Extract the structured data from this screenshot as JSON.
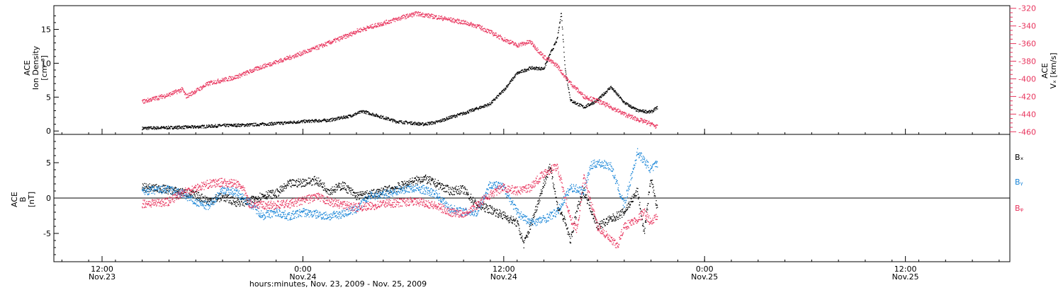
{
  "colors": {
    "axis": "#000000",
    "black_series": "#000000",
    "red_series": "#e8345d",
    "blue_series": "#1a86d8"
  },
  "chart_data": [
    {
      "type": "scatter",
      "panel": "top",
      "ylabel_lines": [
        "ACE",
        "Ion Density",
        "[cm⁻³]"
      ],
      "y2label_lines": [
        "ACE",
        "Vₓ [km/s]"
      ],
      "ylim": [
        -0.5,
        18.5
      ],
      "yticks": [
        0,
        5,
        10,
        15
      ],
      "y2lim": [
        -463,
        -317
      ],
      "y2ticks": [
        -320,
        -340,
        -360,
        -380,
        -400,
        -420,
        -440,
        -460
      ],
      "y2_axis_color": "#e8345d",
      "series": [
        {
          "axis": "left",
          "color": "#000000",
          "points": [
            [
              0,
              0.4
            ],
            [
              2,
              0.5
            ],
            [
              4,
              0.6
            ],
            [
              6,
              0.8
            ],
            [
              8,
              0.9
            ],
            [
              10,
              1.1
            ],
            [
              12,
              1.4
            ],
            [
              14,
              1.6
            ],
            [
              15.5,
              2.2
            ],
            [
              16.5,
              2.9
            ],
            [
              17.5,
              2.3
            ],
            [
              19,
              1.4
            ],
            [
              21,
              1.0
            ],
            [
              22,
              1.3
            ],
            [
              23,
              2.0
            ],
            [
              24,
              2.6
            ],
            [
              25,
              3.3
            ],
            [
              26,
              4.0
            ],
            [
              27,
              6.0
            ],
            [
              28,
              8.5
            ],
            [
              29,
              9.3
            ],
            [
              30,
              9.2
            ],
            [
              30.5,
              11.5
            ],
            [
              31,
              13.5
            ],
            [
              31.3,
              17.5
            ],
            [
              31.6,
              9.0
            ],
            [
              32,
              4.5
            ],
            [
              33,
              3.5
            ],
            [
              34,
              4.5
            ],
            [
              35,
              6.5
            ],
            [
              36,
              4.2
            ],
            [
              37,
              3.0
            ],
            [
              38,
              2.8
            ],
            [
              38.5,
              3.5
            ]
          ]
        },
        {
          "axis": "right",
          "color": "#e8345d",
          "points": [
            [
              0,
              -426
            ],
            [
              2,
              -418
            ],
            [
              3,
              -412
            ],
            [
              3.3,
              -420
            ],
            [
              5,
              -405
            ],
            [
              7,
              -398
            ],
            [
              9,
              -386
            ],
            [
              11,
              -376
            ],
            [
              13,
              -365
            ],
            [
              14.5,
              -356
            ],
            [
              15.5,
              -350
            ],
            [
              16,
              -346
            ],
            [
              18,
              -337
            ],
            [
              19.5,
              -330
            ],
            [
              20.5,
              -326
            ],
            [
              22,
              -330
            ],
            [
              23,
              -333
            ],
            [
              24,
              -336
            ],
            [
              25,
              -340
            ],
            [
              26,
              -347
            ],
            [
              27,
              -355
            ],
            [
              28,
              -362
            ],
            [
              29,
              -358
            ],
            [
              30,
              -375
            ],
            [
              31,
              -385
            ],
            [
              31.5,
              -396
            ],
            [
              32,
              -405
            ],
            [
              33,
              -420
            ],
            [
              34,
              -425
            ],
            [
              35,
              -432
            ],
            [
              36,
              -440
            ],
            [
              37,
              -446
            ],
            [
              38,
              -451
            ],
            [
              38.5,
              -455
            ]
          ]
        }
      ]
    },
    {
      "type": "scatter",
      "panel": "bottom",
      "ylabel_lines": [
        "ACE",
        "B",
        "[nT]"
      ],
      "ylim": [
        -9,
        9
      ],
      "yticks": [
        -5,
        0,
        5
      ],
      "zero_line": true,
      "legend": [
        "Bₓ",
        "Bᵧ",
        "Bᵩ"
      ],
      "series": [
        {
          "name": "Bₓ",
          "color": "#000000",
          "points": [
            [
              0,
              1.5
            ],
            [
              1.5,
              1.3
            ],
            [
              3,
              0.8
            ],
            [
              4,
              0.4
            ],
            [
              5,
              -0.4
            ],
            [
              6,
              0.2
            ],
            [
              7,
              -0.6
            ],
            [
              8,
              -0.5
            ],
            [
              9,
              0.4
            ],
            [
              10,
              0.6
            ],
            [
              11,
              2.0
            ],
            [
              12,
              2.2
            ],
            [
              13,
              2.5
            ],
            [
              14,
              1.0
            ],
            [
              15,
              1.8
            ],
            [
              16,
              0.3
            ],
            [
              17,
              0.5
            ],
            [
              18,
              1.0
            ],
            [
              19,
              1.5
            ],
            [
              20,
              2.2
            ],
            [
              21,
              2.8
            ],
            [
              22,
              2.0
            ],
            [
              23,
              1.0
            ],
            [
              24,
              1.2
            ],
            [
              25,
              -1.0
            ],
            [
              26,
              -1.6
            ],
            [
              27,
              -2.5
            ],
            [
              28,
              -3.5
            ],
            [
              28.5,
              -6.5
            ],
            [
              29,
              -4.0
            ],
            [
              30,
              2.0
            ],
            [
              30.5,
              4.5
            ],
            [
              31,
              -1.0
            ],
            [
              31.5,
              -3.0
            ],
            [
              32,
              -6.0
            ],
            [
              32.5,
              -1.5
            ],
            [
              33,
              1.0
            ],
            [
              34,
              -4.0
            ],
            [
              35,
              -3.0
            ],
            [
              36,
              -2.0
            ],
            [
              37,
              1.0
            ],
            [
              37.5,
              -5.0
            ],
            [
              38,
              3.0
            ],
            [
              38.5,
              -2.0
            ]
          ]
        },
        {
          "name": "Bᵧ",
          "color": "#1a86d8",
          "points": [
            [
              0,
              1.0
            ],
            [
              2,
              1.2
            ],
            [
              3,
              0.6
            ],
            [
              4,
              -0.6
            ],
            [
              5,
              -1.2
            ],
            [
              6,
              1.2
            ],
            [
              7,
              0.8
            ],
            [
              8,
              -0.6
            ],
            [
              9,
              -2.5
            ],
            [
              10,
              -2.0
            ],
            [
              11,
              -2.6
            ],
            [
              12,
              -2.0
            ],
            [
              13,
              -2.3
            ],
            [
              14,
              -2.6
            ],
            [
              15,
              -2.2
            ],
            [
              16,
              -1.6
            ],
            [
              17,
              0.3
            ],
            [
              18,
              0.5
            ],
            [
              19,
              1.0
            ],
            [
              20,
              1.4
            ],
            [
              21,
              1.2
            ],
            [
              22,
              0.5
            ],
            [
              23,
              -1.5
            ],
            [
              24,
              -2.0
            ],
            [
              25,
              -2.0
            ],
            [
              26,
              2.0
            ],
            [
              27,
              1.5
            ],
            [
              28,
              -2.0
            ],
            [
              29,
              -3.5
            ],
            [
              30,
              -3.0
            ],
            [
              31,
              -2.0
            ],
            [
              32,
              1.5
            ],
            [
              33,
              1.0
            ],
            [
              33.5,
              4.5
            ],
            [
              34,
              5.0
            ],
            [
              35,
              4.5
            ],
            [
              36,
              -1.0
            ],
            [
              37,
              6.5
            ],
            [
              38,
              4.0
            ],
            [
              38.5,
              5.0
            ]
          ]
        },
        {
          "name": "Bᵩ",
          "color": "#e8345d",
          "points": [
            [
              0,
              -0.8
            ],
            [
              2,
              -0.5
            ],
            [
              3,
              0.8
            ],
            [
              4,
              1.4
            ],
            [
              5,
              2.0
            ],
            [
              6,
              2.2
            ],
            [
              7,
              2.0
            ],
            [
              7.5,
              1.5
            ],
            [
              8,
              -0.8
            ],
            [
              9,
              -1.0
            ],
            [
              10,
              -1.0
            ],
            [
              11,
              -0.8
            ],
            [
              12,
              -0.4
            ],
            [
              13,
              0.2
            ],
            [
              14,
              -0.5
            ],
            [
              15,
              -1.0
            ],
            [
              16,
              -1.3
            ],
            [
              17,
              -1.2
            ],
            [
              18,
              -0.8
            ],
            [
              19,
              -0.7
            ],
            [
              20,
              -0.5
            ],
            [
              21,
              -0.6
            ],
            [
              22,
              -1.2
            ],
            [
              23,
              -2.0
            ],
            [
              24,
              -2.2
            ],
            [
              25,
              -1.0
            ],
            [
              26,
              0.5
            ],
            [
              27,
              1.5
            ],
            [
              28,
              1.0
            ],
            [
              29,
              1.5
            ],
            [
              30,
              3.5
            ],
            [
              31,
              4.5
            ],
            [
              32,
              -3.0
            ],
            [
              32.5,
              -4.5
            ],
            [
              33,
              3.0
            ],
            [
              34,
              -4.0
            ],
            [
              35,
              -6.0
            ],
            [
              35.5,
              -6.8
            ],
            [
              36,
              -4.0
            ],
            [
              37,
              -3.0
            ],
            [
              37.5,
              -2.0
            ],
            [
              38,
              -3.5
            ],
            [
              38.5,
              -2.5
            ]
          ]
        }
      ]
    }
  ],
  "x_axis": {
    "xlim": [
      -6.6,
      64.8
    ],
    "xlabel": "hours:minutes, Nov. 23, 2009 - Nov. 25, 2009",
    "ticks": [
      {
        "x": -3,
        "time": "12:00",
        "date": "Nov.23"
      },
      {
        "x": 12,
        "time": "0:00",
        "date": "Nov.24"
      },
      {
        "x": 27,
        "time": "12:00",
        "date": "Nov.24"
      },
      {
        "x": 42,
        "time": "0:00",
        "date": "Nov.25"
      },
      {
        "x": 57,
        "time": "12:00",
        "date": "Nov.25"
      }
    ],
    "minor_step": 2
  }
}
